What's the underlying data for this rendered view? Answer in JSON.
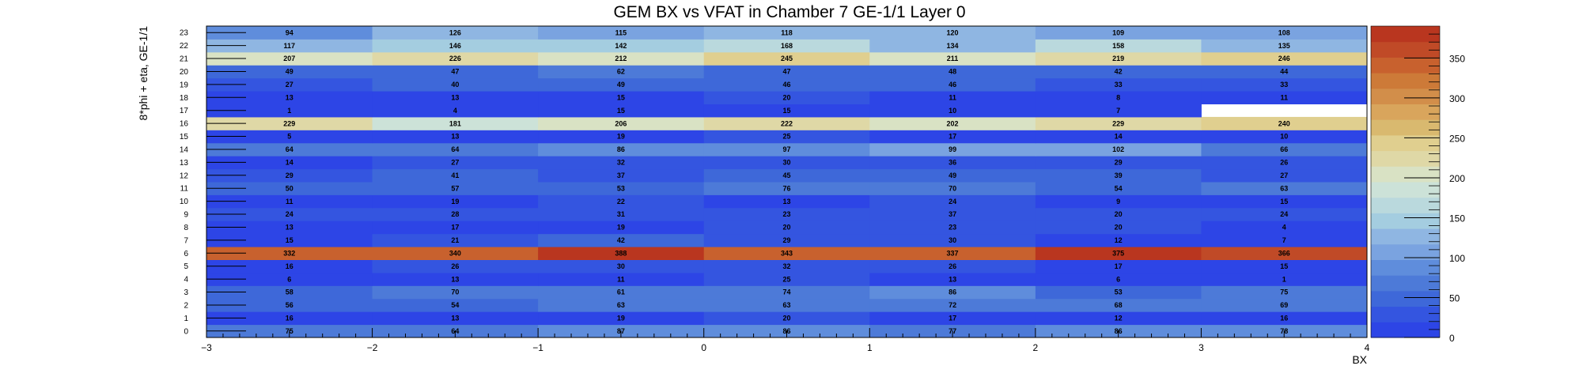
{
  "chart_data": {
    "type": "heatmap",
    "title": "GEM BX vs VFAT in Chamber 7 GE-1/1 Layer 0",
    "xlabel": "BX",
    "ylabel": "8*phi + eta, GE-1/1",
    "xlim": [
      -3,
      4
    ],
    "x_ticks": [
      "−3",
      "−2",
      "−1",
      "0",
      "1",
      "2",
      "3",
      "4"
    ],
    "y_categories": [
      "0",
      "1",
      "2",
      "3",
      "4",
      "5",
      "6",
      "7",
      "8",
      "9",
      "10",
      "11",
      "12",
      "13",
      "14",
      "15",
      "16",
      "17",
      "18",
      "19",
      "20",
      "21",
      "22",
      "23"
    ],
    "x_bins": [
      -2.5,
      -1.5,
      -0.5,
      0.5,
      1.5,
      2.5,
      3.5
    ],
    "values": [
      [
        75,
        64,
        87,
        86,
        77,
        86,
        78
      ],
      [
        16,
        13,
        19,
        20,
        17,
        12,
        16
      ],
      [
        56,
        54,
        63,
        63,
        72,
        68,
        69
      ],
      [
        58,
        70,
        61,
        74,
        86,
        53,
        75
      ],
      [
        6,
        13,
        11,
        25,
        13,
        6,
        1
      ],
      [
        16,
        26,
        30,
        32,
        26,
        17,
        15
      ],
      [
        332,
        340,
        388,
        343,
        337,
        375,
        366
      ],
      [
        15,
        21,
        42,
        29,
        30,
        12,
        7
      ],
      [
        13,
        17,
        19,
        20,
        23,
        20,
        4
      ],
      [
        24,
        28,
        31,
        23,
        37,
        20,
        24
      ],
      [
        11,
        19,
        22,
        13,
        24,
        9,
        15
      ],
      [
        50,
        57,
        53,
        76,
        70,
        54,
        63
      ],
      [
        29,
        41,
        37,
        45,
        49,
        39,
        27
      ],
      [
        14,
        27,
        32,
        30,
        36,
        29,
        26
      ],
      [
        64,
        64,
        86,
        97,
        99,
        102,
        66
      ],
      [
        5,
        13,
        19,
        25,
        17,
        14,
        10
      ],
      [
        229,
        181,
        206,
        222,
        202,
        229,
        240
      ],
      [
        1,
        4,
        15,
        15,
        10,
        7,
        null
      ],
      [
        13,
        13,
        15,
        20,
        11,
        8,
        11
      ],
      [
        27,
        40,
        49,
        46,
        46,
        33,
        33
      ],
      [
        49,
        47,
        62,
        47,
        48,
        42,
        44
      ],
      [
        207,
        226,
        212,
        245,
        211,
        219,
        246
      ],
      [
        117,
        146,
        142,
        168,
        134,
        158,
        135
      ],
      [
        94,
        126,
        115,
        118,
        120,
        109,
        108
      ]
    ],
    "zlim": [
      0,
      390
    ],
    "colorbar_ticks": [
      "0",
      "50",
      "100",
      "150",
      "200",
      "250",
      "300",
      "350"
    ],
    "colorbar_tick_values": [
      0,
      50,
      100,
      150,
      200,
      250,
      300,
      350
    ],
    "palette": [
      "#2d45e6",
      "#3455e0",
      "#3e68d9",
      "#4d7ad8",
      "#5f8ddc",
      "#7aa3e0",
      "#8fb6e2",
      "#a4cde0",
      "#bad9dd",
      "#cce2d8",
      "#d9e2c4",
      "#dfd8a6",
      "#e0cf8f",
      "#d9b96f",
      "#d9a55c",
      "#d28e4a",
      "#cd7a38",
      "#c8612e",
      "#c04a27",
      "#b9361f"
    ]
  }
}
